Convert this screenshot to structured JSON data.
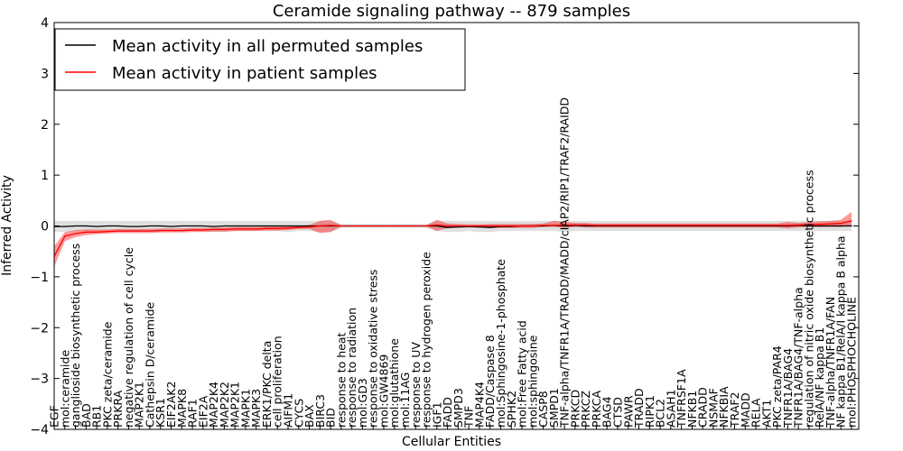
{
  "chart_data": {
    "type": "line",
    "title": "Ceramide signaling pathway -- 879 samples",
    "xlabel": "Cellular Entities",
    "ylabel": "Inferred Activity",
    "ylim": [
      -4,
      4
    ],
    "yticks": [
      -4,
      -3,
      -2,
      -1,
      0,
      1,
      2,
      3,
      4
    ],
    "grid": false,
    "legend_position": "top-left",
    "categories": [
      "EGF",
      "mol:ceramide",
      "ganglioside biosynthetic process",
      "BAD",
      "RB1",
      "PKC zeta/ceramide",
      "PRKRA",
      "negative regulation of cell cycle",
      "MAP2K1",
      "Cathepsin D/ceramide",
      "KSR1",
      "EIF2AK2",
      "MAPK8",
      "RAF1",
      "EIF2A",
      "MAP2K4",
      "MAP2K2",
      "MAP2K1",
      "MAPK1",
      "MAPK3",
      "ERK1/PKC delta",
      "cell proliferation",
      "AIFM1",
      "CYCS",
      "BAX",
      "BIRC3",
      "BID",
      "response to heat",
      "response to radiation",
      "mol:GD3",
      "response to oxidative stress",
      "mol:GW4869",
      "mol:glutathione",
      "mol:11AG",
      "response to UV",
      "response to hydrogen peroxide",
      "IGF1",
      "FADD",
      "SMPD3",
      "TNF",
      "MAP4K4",
      "FADD/Caspase 8",
      "mol:Sphingosine-1-phosphate",
      "SPHK2",
      "mol:Free Fatty acid",
      "mol:sphingosine",
      "CASP8",
      "SMPD1",
      "TNF-alpha/TNFR1A/TRADD/MADD/cIAP2/RIP1/TRAF2/RAIDD",
      "PRKCD",
      "PRKCZ",
      "PRKCA",
      "BAG4",
      "CTSD",
      "PAWR",
      "TRADD",
      "RIPK1",
      "BCL2",
      "ASAH1",
      "TNFRSF1A",
      "NFKB1",
      "CRADD",
      "NSMAF",
      "NFKBIA",
      "TRAF2",
      "MADD",
      "RELA",
      "AKT1",
      "PKC zeta/PAR4",
      "TNFR1A/BAG4",
      "TNFR1A/BAG4/TNF-alpha",
      "regulation of nitric oxide biosynthetic process",
      "RelA/NF kappa B1",
      "TNF-alpha/TNFR1A/FAN",
      "NF kappa B1/RelA/I kappa B alpha",
      "mol:PHOSPHOCHOLINE"
    ],
    "series": [
      {
        "name": "Mean activity in all permuted samples",
        "color": "#000000",
        "values": [
          -0.01,
          -0.01,
          0.0,
          0.0,
          -0.01,
          0.0,
          0.0,
          -0.01,
          -0.01,
          0.0,
          0.0,
          -0.01,
          0.0,
          0.0,
          0.0,
          -0.01,
          0.0,
          0.0,
          0.0,
          0.0,
          0.0,
          0.0,
          0.0,
          0.0,
          0.0,
          0.0,
          0.0,
          0.0,
          0.0,
          0.0,
          0.0,
          0.0,
          0.0,
          0.0,
          0.0,
          0.0,
          0.0,
          -0.03,
          -0.02,
          -0.01,
          -0.02,
          -0.03,
          -0.01,
          -0.01,
          0.0,
          0.0,
          0.0,
          0.01,
          0.0,
          0.01,
          0.0,
          0.0,
          0.0,
          0.0,
          0.0,
          0.0,
          0.0,
          0.0,
          0.0,
          0.0,
          0.0,
          0.0,
          0.0,
          0.0,
          0.0,
          0.0,
          0.0,
          0.0,
          0.0,
          0.0,
          0.01,
          0.0,
          0.0,
          0.0,
          0.0,
          0.0
        ],
        "band_low": [
          -0.12,
          -0.12,
          -0.1,
          -0.1,
          -0.1,
          -0.1,
          -0.1,
          -0.1,
          -0.1,
          -0.1,
          -0.1,
          -0.1,
          -0.1,
          -0.1,
          -0.1,
          -0.12,
          -0.12,
          -0.1,
          -0.1,
          -0.1,
          -0.1,
          -0.1,
          -0.12,
          -0.1,
          -0.1,
          -0.12,
          -0.12,
          -0.04,
          -0.04,
          -0.04,
          -0.04,
          -0.04,
          -0.04,
          -0.04,
          -0.04,
          -0.04,
          -0.1,
          -0.12,
          -0.12,
          -0.1,
          -0.12,
          -0.12,
          -0.1,
          -0.1,
          -0.1,
          -0.1,
          -0.1,
          -0.1,
          -0.12,
          -0.1,
          -0.1,
          -0.1,
          -0.1,
          -0.1,
          -0.1,
          -0.1,
          -0.1,
          -0.1,
          -0.1,
          -0.1,
          -0.1,
          -0.1,
          -0.1,
          -0.1,
          -0.1,
          -0.1,
          -0.1,
          -0.1,
          -0.1,
          -0.1,
          -0.1,
          -0.1,
          -0.1,
          -0.1,
          -0.1,
          -0.1
        ],
        "band_high": [
          0.1,
          0.1,
          0.1,
          0.1,
          0.1,
          0.1,
          0.1,
          0.1,
          0.1,
          0.1,
          0.1,
          0.1,
          0.1,
          0.1,
          0.1,
          0.1,
          0.1,
          0.1,
          0.1,
          0.1,
          0.1,
          0.1,
          0.1,
          0.1,
          0.1,
          0.1,
          0.1,
          0.04,
          0.04,
          0.04,
          0.04,
          0.04,
          0.04,
          0.04,
          0.04,
          0.04,
          0.1,
          0.1,
          0.1,
          0.1,
          0.1,
          0.1,
          0.1,
          0.1,
          0.1,
          0.1,
          0.1,
          0.1,
          0.1,
          0.1,
          0.1,
          0.1,
          0.1,
          0.1,
          0.1,
          0.1,
          0.1,
          0.1,
          0.1,
          0.1,
          0.1,
          0.1,
          0.1,
          0.1,
          0.1,
          0.1,
          0.1,
          0.1,
          0.1,
          0.1,
          0.1,
          0.1,
          0.1,
          0.1,
          0.1,
          0.1
        ]
      },
      {
        "name": "Mean activity in patient samples",
        "color": "#ff0000",
        "values": [
          -0.6,
          -0.2,
          -0.15,
          -0.12,
          -0.12,
          -0.11,
          -0.1,
          -0.1,
          -0.1,
          -0.1,
          -0.09,
          -0.09,
          -0.09,
          -0.08,
          -0.08,
          -0.07,
          -0.07,
          -0.06,
          -0.06,
          -0.06,
          -0.05,
          -0.05,
          -0.04,
          -0.03,
          -0.02,
          0.0,
          0.01,
          0.0,
          0.0,
          0.0,
          0.0,
          0.0,
          0.0,
          0.0,
          0.0,
          0.0,
          0.02,
          0.0,
          0.0,
          0.0,
          0.0,
          0.0,
          0.0,
          0.0,
          0.0,
          0.0,
          0.01,
          0.01,
          0.02,
          0.02,
          0.02,
          0.01,
          0.01,
          0.01,
          0.01,
          0.01,
          0.01,
          0.01,
          0.01,
          0.01,
          0.01,
          0.01,
          0.01,
          0.01,
          0.01,
          0.01,
          0.01,
          0.01,
          0.01,
          0.01,
          0.02,
          0.03,
          0.03,
          0.04,
          0.05,
          0.1
        ],
        "band_low": [
          -0.8,
          -0.3,
          -0.22,
          -0.18,
          -0.16,
          -0.15,
          -0.14,
          -0.14,
          -0.14,
          -0.14,
          -0.13,
          -0.13,
          -0.13,
          -0.12,
          -0.12,
          -0.11,
          -0.11,
          -0.1,
          -0.1,
          -0.1,
          -0.09,
          -0.09,
          -0.08,
          -0.06,
          -0.06,
          -0.14,
          -0.12,
          -0.01,
          -0.01,
          -0.01,
          -0.01,
          -0.01,
          -0.01,
          -0.01,
          -0.01,
          -0.01,
          -0.1,
          -0.04,
          -0.03,
          -0.03,
          -0.03,
          -0.04,
          -0.04,
          -0.04,
          -0.04,
          -0.04,
          -0.02,
          -0.02,
          -0.04,
          -0.02,
          -0.03,
          -0.03,
          -0.03,
          -0.03,
          -0.03,
          -0.03,
          -0.03,
          -0.03,
          -0.03,
          -0.03,
          -0.03,
          -0.03,
          -0.03,
          -0.03,
          -0.03,
          -0.03,
          -0.03,
          -0.03,
          -0.03,
          -0.05,
          -0.03,
          -0.02,
          -0.02,
          -0.02,
          -0.02,
          0.0
        ],
        "band_high": [
          -0.4,
          -0.12,
          -0.08,
          -0.07,
          -0.07,
          -0.07,
          -0.06,
          -0.06,
          -0.06,
          -0.06,
          -0.05,
          -0.05,
          -0.05,
          -0.04,
          -0.04,
          -0.03,
          -0.03,
          -0.02,
          -0.02,
          -0.02,
          -0.01,
          -0.01,
          0.0,
          0.0,
          0.02,
          0.1,
          0.12,
          0.01,
          0.01,
          0.01,
          0.01,
          0.01,
          0.01,
          0.01,
          0.01,
          0.01,
          0.12,
          0.05,
          0.04,
          0.03,
          0.03,
          0.04,
          0.04,
          0.04,
          0.04,
          0.04,
          0.05,
          0.1,
          0.08,
          0.06,
          0.06,
          0.05,
          0.05,
          0.05,
          0.05,
          0.05,
          0.05,
          0.05,
          0.05,
          0.05,
          0.05,
          0.05,
          0.05,
          0.05,
          0.05,
          0.05,
          0.05,
          0.05,
          0.05,
          0.08,
          0.06,
          0.08,
          0.09,
          0.1,
          0.12,
          0.28
        ]
      }
    ]
  }
}
